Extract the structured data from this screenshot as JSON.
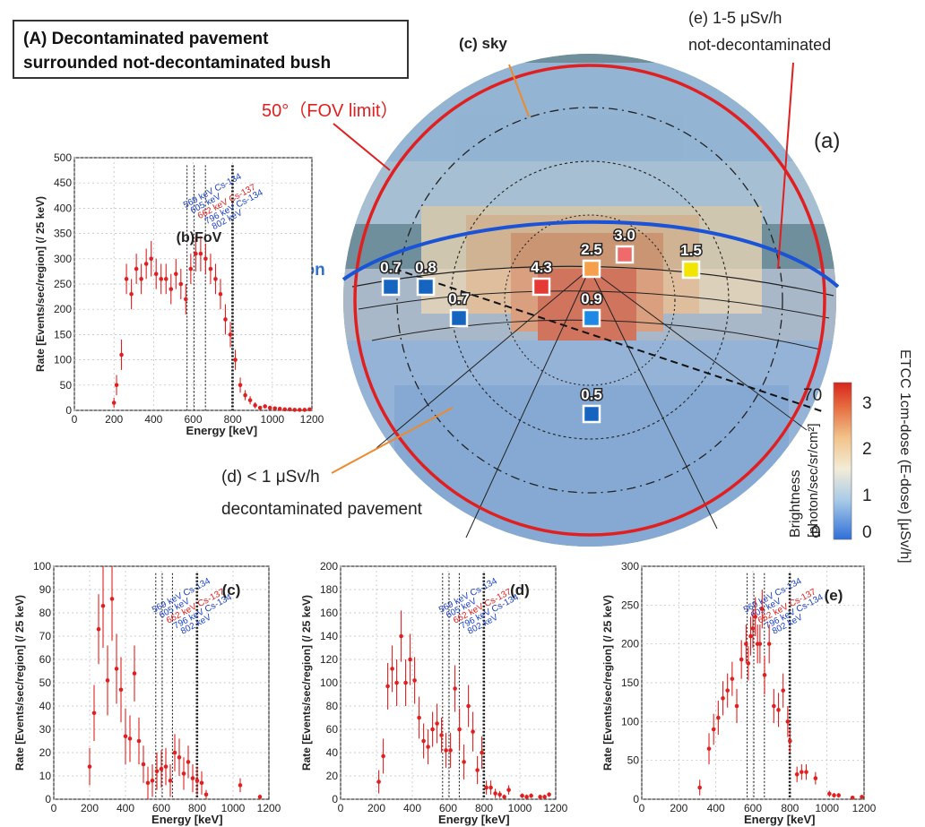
{
  "panel_title": {
    "line1": "(A)  Decontaminated pavement",
    "line2": "surrounded not-decontaminated bush"
  },
  "labels": {
    "sky": "(c) sky",
    "e_line1": "(e) 1-5 μSv/h",
    "e_line2": "not-decontaminated",
    "fov": "50°（FOV limit）",
    "a": "(a)",
    "horizon": "Horizon",
    "d_line1": "(d) < 1 μSv/h",
    "d_line2": "decontaminated pavement",
    "b_fov": "(b)FoV"
  },
  "colors": {
    "red": "#e02020",
    "blue": "#1a53d6",
    "orange": "#ee8a2e",
    "marker_red": "#d63a2a"
  },
  "markers": [
    {
      "value": "0.7",
      "color": "#1565c0"
    },
    {
      "value": "0.8",
      "color": "#1565c0"
    },
    {
      "value": "0.7",
      "color": "#1565c0"
    },
    {
      "value": "4.3",
      "color": "#e53935"
    },
    {
      "value": "2.5",
      "color": "#f5a04a"
    },
    {
      "value": "3.0",
      "color": "#ef6b6b"
    },
    {
      "value": "1.5",
      "color": "#f2e600"
    },
    {
      "value": "0.9",
      "color": "#1e88e5"
    },
    {
      "value": "0.5",
      "color": "#1565c0"
    }
  ],
  "colorbar": {
    "title": "ETCC 1cm-dose (E-dose) [μSv/h]",
    "brightness_label": "Brightness",
    "brightness_unit": "[photon/sec/sr/cm²]",
    "dose_ticks": [
      "3",
      "2",
      "1",
      "0"
    ],
    "brightness_ticks": [
      "70",
      "0"
    ]
  },
  "chart_data": [
    {
      "id": "b",
      "type": "scatter",
      "panel_label": "(b)FoV",
      "xlabel": "Energy [keV]",
      "ylabel": "Rate [Events/sec/region] (/ 25 keV)",
      "xlim": [
        0,
        1200
      ],
      "ylim": [
        0,
        500
      ],
      "xticks": [
        "0",
        "200",
        "400",
        "600",
        "800",
        "1000",
        "1200"
      ],
      "yticks": [
        "0",
        "50",
        "100",
        "150",
        "200",
        "250",
        "300",
        "350",
        "400",
        "450",
        "500"
      ],
      "lines": [
        569,
        605,
        662,
        796,
        802
      ],
      "line_labels": [
        {
          "text": "569 keV Cs-134",
          "color": "#1a3fc4"
        },
        {
          "text": "605 keV",
          "color": "#1a3fc4"
        },
        {
          "text": "662 keV Cs-137",
          "color": "#e02020"
        },
        {
          "text": "796 keV Cs-134",
          "color": "#1a3fc4"
        },
        {
          "text": "802 keV",
          "color": "#1a3fc4"
        }
      ],
      "x": [
        200,
        213,
        238,
        263,
        288,
        313,
        338,
        363,
        388,
        413,
        438,
        463,
        488,
        513,
        538,
        563,
        588,
        613,
        638,
        663,
        688,
        713,
        738,
        763,
        788,
        813,
        838,
        863,
        888,
        913,
        938,
        963,
        988,
        1013,
        1038,
        1063,
        1088,
        1113,
        1138,
        1163,
        1188
      ],
      "y": [
        15,
        50,
        110,
        260,
        230,
        280,
        260,
        290,
        300,
        270,
        260,
        260,
        240,
        270,
        250,
        220,
        280,
        310,
        310,
        300,
        280,
        260,
        230,
        180,
        150,
        100,
        50,
        30,
        20,
        10,
        5,
        8,
        5,
        4,
        3,
        2,
        2,
        1,
        1,
        1,
        2
      ],
      "err": [
        10,
        20,
        30,
        30,
        30,
        30,
        30,
        30,
        35,
        30,
        30,
        30,
        30,
        30,
        30,
        30,
        30,
        35,
        35,
        30,
        30,
        30,
        30,
        30,
        25,
        20,
        15,
        10,
        8,
        6,
        4,
        4,
        4,
        3,
        3,
        2,
        2,
        1,
        1,
        1,
        2
      ]
    },
    {
      "id": "c",
      "type": "scatter",
      "panel_label": "(c)",
      "xlabel": "Energy [keV]",
      "ylabel": "Rate [Events/sec/region] (/ 25 keV)",
      "xlim": [
        0,
        1200
      ],
      "ylim": [
        0,
        100
      ],
      "xticks": [
        "0",
        "200",
        "400",
        "600",
        "800",
        "1000",
        "1200"
      ],
      "yticks": [
        "0",
        "10",
        "20",
        "30",
        "40",
        "50",
        "60",
        "70",
        "80",
        "90",
        "100"
      ],
      "lines": [
        569,
        605,
        662,
        796,
        802
      ],
      "line_labels": [
        {
          "text": "569 keV Cs-134",
          "color": "#1a3fc4"
        },
        {
          "text": "605 keV",
          "color": "#1a3fc4"
        },
        {
          "text": "662 keV Cs-137",
          "color": "#e02020"
        },
        {
          "text": "796 keV Cs-134",
          "color": "#1a3fc4"
        },
        {
          "text": "802 keV",
          "color": "#1a3fc4"
        }
      ],
      "x": [
        200,
        225,
        250,
        275,
        300,
        325,
        350,
        375,
        400,
        425,
        450,
        475,
        500,
        525,
        550,
        575,
        600,
        625,
        650,
        675,
        700,
        725,
        750,
        775,
        800,
        825,
        850,
        1040,
        1150
      ],
      "y": [
        14,
        37,
        73,
        83,
        51,
        86,
        56,
        47,
        27,
        26,
        54,
        25,
        15,
        7,
        8,
        12,
        13,
        14,
        8,
        20,
        18,
        11,
        16,
        9,
        8,
        7,
        2,
        6,
        1
      ],
      "err": [
        8,
        12,
        15,
        18,
        15,
        18,
        15,
        14,
        12,
        10,
        12,
        10,
        8,
        7,
        7,
        8,
        8,
        8,
        7,
        8,
        8,
        7,
        7,
        6,
        6,
        5,
        2,
        3,
        1
      ]
    },
    {
      "id": "d",
      "type": "scatter",
      "panel_label": "(d)",
      "xlabel": "Energy [keV]",
      "ylabel": "Rate [Events/sec/region] (/ 25 keV)",
      "xlim": [
        0,
        1200
      ],
      "ylim": [
        0,
        200
      ],
      "xticks": [
        "0",
        "200",
        "400",
        "600",
        "800",
        "1000",
        "1200"
      ],
      "yticks": [
        "0",
        "20",
        "40",
        "60",
        "80",
        "100",
        "120",
        "140",
        "160",
        "180",
        "200"
      ],
      "lines": [
        569,
        605,
        662,
        796,
        802
      ],
      "line_labels": [
        {
          "text": "569 keV Cs-134",
          "color": "#1a3fc4"
        },
        {
          "text": "605 keV",
          "color": "#1a3fc4"
        },
        {
          "text": "662 keV Cs-137",
          "color": "#e02020"
        },
        {
          "text": "796 keV Cs-134",
          "color": "#1a3fc4"
        },
        {
          "text": "802 keV",
          "color": "#1a3fc4"
        }
      ],
      "x": [
        213,
        238,
        263,
        288,
        313,
        338,
        363,
        388,
        413,
        438,
        463,
        488,
        513,
        538,
        563,
        588,
        613,
        638,
        663,
        688,
        713,
        738,
        763,
        788,
        813,
        838,
        863,
        888,
        913,
        938,
        1013,
        1038,
        1063,
        1113,
        1138,
        1163
      ],
      "y": [
        15,
        37,
        97,
        112,
        100,
        140,
        100,
        120,
        102,
        70,
        50,
        45,
        60,
        65,
        55,
        42,
        42,
        95,
        60,
        32,
        80,
        58,
        25,
        40,
        10,
        10,
        5,
        4,
        2,
        8,
        3,
        2,
        3,
        2,
        2,
        4
      ],
      "err": [
        10,
        15,
        20,
        20,
        20,
        22,
        20,
        22,
        20,
        18,
        15,
        15,
        15,
        17,
        15,
        15,
        15,
        20,
        18,
        15,
        18,
        17,
        12,
        14,
        6,
        6,
        4,
        3,
        2,
        4,
        2,
        2,
        2,
        2,
        2,
        2
      ]
    },
    {
      "id": "e",
      "type": "scatter",
      "panel_label": "(e)",
      "xlabel": "Energy [keV]",
      "ylabel": "Rate [Events/sec/region] (/ 25 keV)",
      "xlim": [
        0,
        1200
      ],
      "ylim": [
        0,
        300
      ],
      "xticks": [
        "0",
        "200",
        "400",
        "600",
        "800",
        "1000",
        "1200"
      ],
      "yticks": [
        "0",
        "50",
        "100",
        "150",
        "200",
        "250",
        "300"
      ],
      "lines": [
        569,
        605,
        662,
        796,
        802
      ],
      "line_labels": [
        {
          "text": "569 keV Cs-134",
          "color": "#1a3fc4"
        },
        {
          "text": "605 keV",
          "color": "#1a3fc4"
        },
        {
          "text": "662 keV Cs-137",
          "color": "#e02020"
        },
        {
          "text": "796 keV Cs-134",
          "color": "#1a3fc4"
        },
        {
          "text": "802 keV",
          "color": "#1a3fc4"
        }
      ],
      "x": [
        313,
        363,
        388,
        413,
        438,
        463,
        488,
        513,
        538,
        563,
        575,
        588,
        600,
        613,
        625,
        638,
        650,
        663,
        688,
        713,
        738,
        763,
        788,
        800,
        838,
        863,
        888,
        938,
        1013,
        1038,
        1063,
        1138,
        1188
      ],
      "y": [
        15,
        65,
        90,
        105,
        130,
        140,
        155,
        120,
        180,
        200,
        175,
        210,
        220,
        235,
        200,
        200,
        245,
        160,
        200,
        120,
        115,
        140,
        100,
        75,
        32,
        35,
        35,
        27,
        7,
        5,
        5,
        2,
        3
      ],
      "err": [
        10,
        20,
        20,
        22,
        22,
        22,
        22,
        22,
        25,
        25,
        22,
        25,
        25,
        25,
        25,
        25,
        25,
        25,
        25,
        22,
        22,
        22,
        20,
        15,
        10,
        10,
        10,
        8,
        4,
        3,
        3,
        2,
        2
      ]
    }
  ]
}
